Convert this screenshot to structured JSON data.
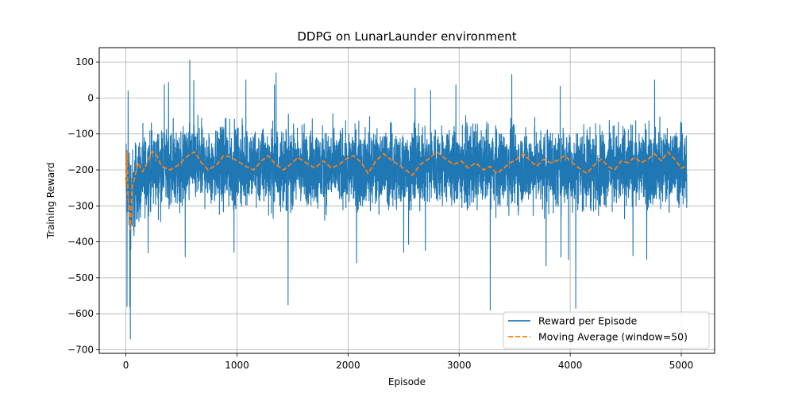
{
  "chart_data": {
    "type": "line",
    "title": "DDPG on LunarLaunder environment",
    "xlabel": "Episode",
    "ylabel": "Training Reward",
    "xlim": [
      -240,
      5300
    ],
    "ylim": [
      -710,
      140
    ],
    "x_ticks": [
      0,
      1000,
      2000,
      3000,
      4000,
      5000
    ],
    "y_ticks": [
      100,
      0,
      -100,
      -200,
      -300,
      -400,
      -500,
      -600,
      -700
    ],
    "grid": true,
    "legend": "lower-right",
    "episodes": 5050,
    "series": [
      {
        "name": "Reward per Episode",
        "style": "solid",
        "color": "#1f77b4",
        "mean": [
          [
            0,
            -230
          ],
          [
            50,
            -280
          ],
          [
            100,
            -230
          ],
          [
            250,
            -200
          ],
          [
            600,
            -185
          ],
          [
            1000,
            -190
          ],
          [
            2000,
            -195
          ],
          [
            3000,
            -190
          ],
          [
            4000,
            -195
          ],
          [
            5050,
            -190
          ]
        ],
        "band": [
          [
            0,
            150
          ],
          [
            60,
            140
          ],
          [
            150,
            120
          ],
          [
            5050,
            115
          ]
        ],
        "notable_points": [
          [
            10,
            -580
          ],
          [
            20,
            20
          ],
          [
            35,
            -580
          ],
          [
            40,
            -670
          ],
          [
            70,
            -370
          ],
          [
            575,
            105
          ],
          [
            1080,
            50
          ],
          [
            1460,
            -575
          ],
          [
            3280,
            -590
          ],
          [
            4050,
            -585
          ],
          [
            4760,
            50
          ]
        ]
      },
      {
        "name": "Moving Average (window=50)",
        "style": "dashed",
        "color": "#ff7f0e",
        "values": [
          [
            0,
            -240
          ],
          [
            10,
            -150
          ],
          [
            20,
            -280
          ],
          [
            30,
            -300
          ],
          [
            40,
            -365
          ],
          [
            55,
            -250
          ],
          [
            80,
            -220
          ],
          [
            110,
            -180
          ],
          [
            150,
            -205
          ],
          [
            200,
            -175
          ],
          [
            240,
            -148
          ],
          [
            280,
            -160
          ],
          [
            320,
            -190
          ],
          [
            400,
            -200
          ],
          [
            480,
            -185
          ],
          [
            560,
            -160
          ],
          [
            620,
            -150
          ],
          [
            680,
            -180
          ],
          [
            740,
            -200
          ],
          [
            820,
            -185
          ],
          [
            880,
            -160
          ],
          [
            950,
            -165
          ],
          [
            1000,
            -175
          ],
          [
            1080,
            -190
          ],
          [
            1150,
            -200
          ],
          [
            1220,
            -175
          ],
          [
            1280,
            -160
          ],
          [
            1350,
            -185
          ],
          [
            1420,
            -200
          ],
          [
            1480,
            -185
          ],
          [
            1550,
            -165
          ],
          [
            1620,
            -180
          ],
          [
            1700,
            -195
          ],
          [
            1780,
            -175
          ],
          [
            1850,
            -195
          ],
          [
            1920,
            -185
          ],
          [
            1980,
            -170
          ],
          [
            2050,
            -160
          ],
          [
            2120,
            -180
          ],
          [
            2180,
            -210
          ],
          [
            2250,
            -175
          ],
          [
            2320,
            -155
          ],
          [
            2380,
            -170
          ],
          [
            2450,
            -185
          ],
          [
            2520,
            -200
          ],
          [
            2580,
            -215
          ],
          [
            2650,
            -185
          ],
          [
            2720,
            -170
          ],
          [
            2800,
            -150
          ],
          [
            2880,
            -170
          ],
          [
            2950,
            -185
          ],
          [
            3020,
            -175
          ],
          [
            3080,
            -195
          ],
          [
            3150,
            -180
          ],
          [
            3220,
            -200
          ],
          [
            3280,
            -190
          ],
          [
            3340,
            -210
          ],
          [
            3400,
            -195
          ],
          [
            3460,
            -180
          ],
          [
            3520,
            -170
          ],
          [
            3580,
            -155
          ],
          [
            3640,
            -175
          ],
          [
            3700,
            -190
          ],
          [
            3760,
            -170
          ],
          [
            3820,
            -180
          ],
          [
            3880,
            -175
          ],
          [
            3950,
            -160
          ],
          [
            4020,
            -180
          ],
          [
            4080,
            -195
          ],
          [
            4150,
            -210
          ],
          [
            4220,
            -185
          ],
          [
            4280,
            -170
          ],
          [
            4340,
            -190
          ],
          [
            4400,
            -200
          ],
          [
            4460,
            -175
          ],
          [
            4520,
            -180
          ],
          [
            4580,
            -165
          ],
          [
            4640,
            -180
          ],
          [
            4700,
            -170
          ],
          [
            4760,
            -155
          ],
          [
            4820,
            -175
          ],
          [
            4880,
            -150
          ],
          [
            4940,
            -170
          ],
          [
            5000,
            -195
          ],
          [
            5050,
            -190
          ]
        ]
      }
    ]
  }
}
